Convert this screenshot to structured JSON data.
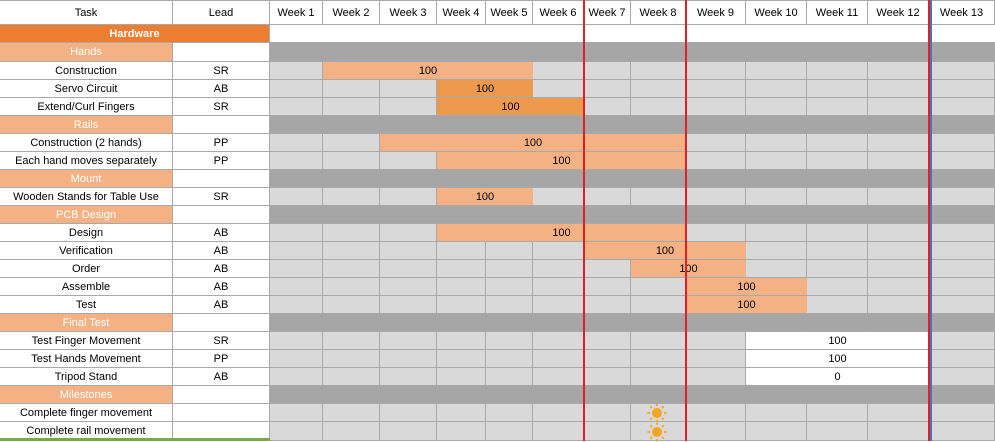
{
  "header": {
    "task": "Task",
    "lead": "Lead",
    "weeks": [
      "Week 1",
      "Week 2",
      "Week 3",
      "Week 4",
      "Week 5",
      "Week 6",
      "Week 7",
      "Week 8",
      "Week 9",
      "Week 10",
      "Week 11",
      "Week 12",
      "Week 13"
    ]
  },
  "rows": [
    {
      "kind": "hardware",
      "task": "Hardware",
      "lead": ""
    },
    {
      "kind": "section",
      "task": "Hands",
      "lead": ""
    },
    {
      "kind": "task",
      "task": "Construction",
      "lead": "SR",
      "bar": {
        "start": 2,
        "end": 5,
        "value": "100",
        "color": "#f4b183"
      }
    },
    {
      "kind": "task",
      "task": "Servo Circuit",
      "lead": "AB",
      "bar": {
        "start": 4,
        "end": 5,
        "value": "100",
        "color": "#ed9a4e"
      }
    },
    {
      "kind": "task",
      "task": "Extend/Curl Fingers",
      "lead": "SR",
      "bar": {
        "start": 4,
        "end": 6,
        "value": "100",
        "color": "#ed9a4e"
      }
    },
    {
      "kind": "section",
      "task": "Rails",
      "lead": ""
    },
    {
      "kind": "task",
      "task": "Construction (2 hands)",
      "lead": "PP",
      "bar": {
        "start": 3,
        "end": 8,
        "value": "100",
        "color": "#f4b183"
      }
    },
    {
      "kind": "task",
      "task": "Each hand moves separately",
      "lead": "PP",
      "bar": {
        "start": 4,
        "end": 8,
        "value": "100",
        "color": "#f4b183"
      }
    },
    {
      "kind": "section",
      "task": "Mount",
      "lead": ""
    },
    {
      "kind": "task",
      "task": "Wooden Stands for Table Use",
      "lead": "SR",
      "bar": {
        "start": 4,
        "end": 5,
        "value": "100",
        "color": "#f4b183"
      }
    },
    {
      "kind": "section",
      "task": "PCB Design",
      "lead": ""
    },
    {
      "kind": "task",
      "task": "Design",
      "lead": "AB",
      "bar": {
        "start": 4,
        "end": 8,
        "value": "100",
        "color": "#f4b183"
      }
    },
    {
      "kind": "task",
      "task": "Verification",
      "lead": "AB",
      "bar": {
        "start": 7,
        "end": 9,
        "value": "100",
        "color": "#f4b183"
      }
    },
    {
      "kind": "task",
      "task": "Order",
      "lead": "AB",
      "bar": {
        "start": 8,
        "end": 9,
        "value": "100",
        "color": "#f4b183"
      }
    },
    {
      "kind": "task",
      "task": "Assemble",
      "lead": "AB",
      "bar": {
        "start": 9,
        "end": 10,
        "value": "100",
        "color": "#f4b183"
      }
    },
    {
      "kind": "task",
      "task": "Test",
      "lead": "AB",
      "bar": {
        "start": 9,
        "end": 10,
        "value": "100",
        "color": "#f4b183"
      }
    },
    {
      "kind": "section",
      "task": "Final Test",
      "lead": ""
    },
    {
      "kind": "task",
      "task": "Test Finger Movement",
      "lead": "SR",
      "white": {
        "start": 10,
        "end": 12,
        "value": "100"
      }
    },
    {
      "kind": "task",
      "task": "Test Hands Movement",
      "lead": "PP",
      "white": {
        "start": 10,
        "end": 12,
        "value": "100"
      }
    },
    {
      "kind": "task",
      "task": "Tripod Stand",
      "lead": "AB",
      "white": {
        "start": 10,
        "end": 12,
        "value": "0"
      }
    },
    {
      "kind": "section",
      "task": "Milestones",
      "lead": ""
    },
    {
      "kind": "task",
      "task": "Complete finger movement",
      "lead": "",
      "milestone_week": 8
    },
    {
      "kind": "task",
      "task": "Complete rail movement",
      "lead": "",
      "milestone_week": 8
    }
  ],
  "colors": {
    "hardware": "#ed7d31",
    "section": "#f4b183",
    "grid": "#d9d9d9",
    "band": "#a6a6a6",
    "red_line": "#e31e24",
    "blue_line": "#4472c4",
    "milestone": "#f5a623"
  },
  "markers": {
    "red_lines_after_week": [
      6,
      8,
      12
    ],
    "blue_line_after_week": 12
  },
  "icons": {
    "milestone": "sun-icon"
  }
}
